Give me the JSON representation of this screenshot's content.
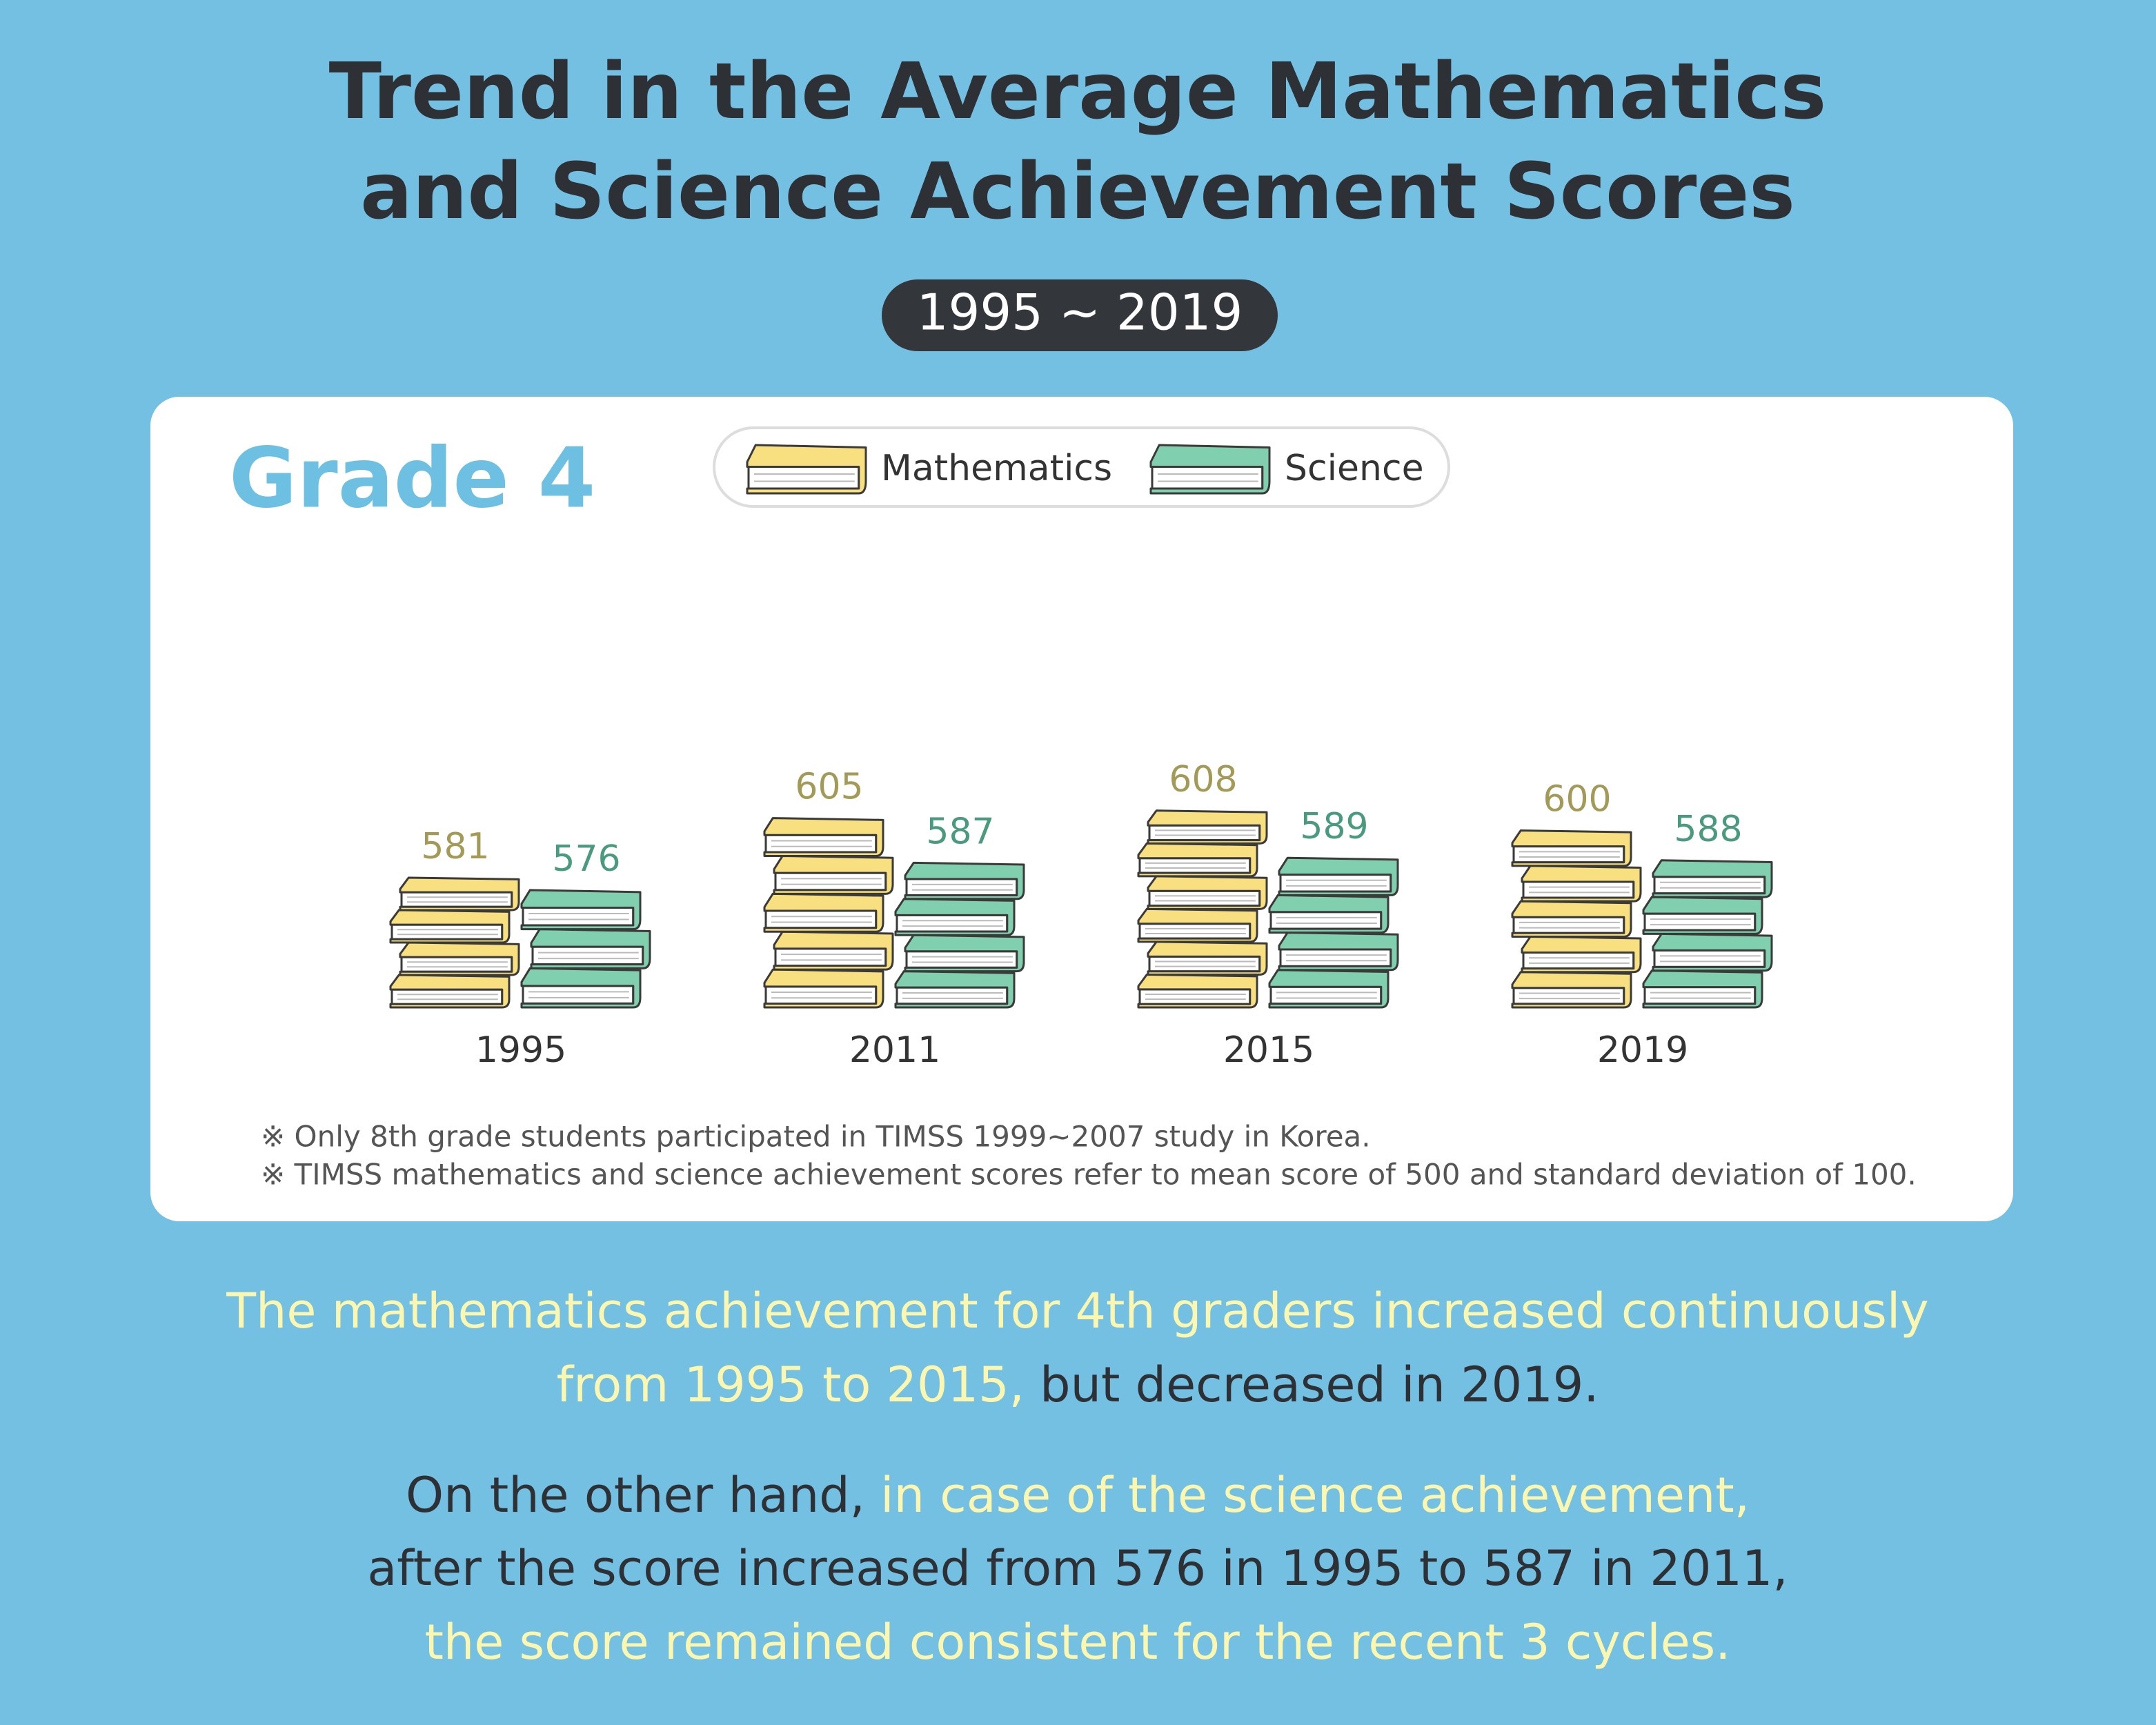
{
  "chart_data": {
    "type": "book-stack",
    "title": [
      "Trend in the Average Mathematics",
      "and Science Achievement Scores"
    ],
    "subtitle": "1995 ~ 2019",
    "label": "Grade 4",
    "categories": [
      "1995",
      "2011",
      "2015",
      "2019"
    ],
    "series": [
      {
        "name": "Mathematics",
        "color": "#f8e080",
        "label_color": "#a49a58",
        "values": [
          581,
          605,
          608,
          600
        ]
      },
      {
        "name": "Science",
        "color": "#80cfae",
        "label_color": "#4a9a7e",
        "values": [
          576,
          587,
          589,
          588
        ]
      }
    ],
    "notes": [
      "※ Only 8th grade students participated in TIMSS 1999~2007 study in Korea.",
      "※ TIMSS mathematics and science achievement scores refer to mean score of 500 and standard deviation of 100."
    ],
    "summary": [
      [
        {
          "text": "The mathematics achievement for 4th graders increased continuously",
          "highlight": true
        }
      ],
      [
        {
          "text": "from 1995 to 2015,",
          "highlight": true
        },
        {
          "text": " but decreased in 2019.",
          "highlight": false
        }
      ],
      [
        {
          "text": "On the other hand, ",
          "highlight": false
        },
        {
          "text": "in case of the science achievement,",
          "highlight": true
        }
      ],
      [
        {
          "text": "after the score increased from 576 in 1995 to 587 in 2011,",
          "highlight": false
        }
      ],
      [
        {
          "text": "the score remained consistent for the recent 3 cycles.",
          "highlight": true
        }
      ]
    ]
  }
}
